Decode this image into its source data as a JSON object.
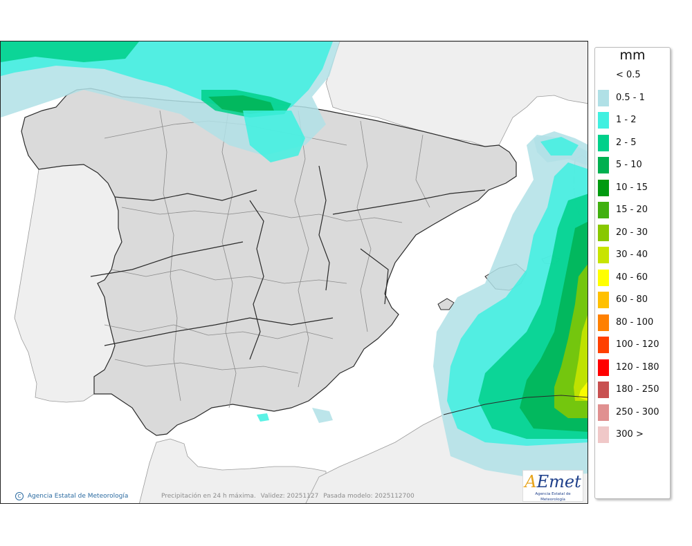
{
  "map": {
    "caption_parts": [
      "Precipitación en 24 h máxima.",
      "Validez: 20251127",
      "Pasada modelo: 2025112700"
    ],
    "credit": "Agencia Estatal de Meteorología",
    "copyright_symbol": "C",
    "logo_text": "AEmet",
    "logo_subtitle": "Agencia Estatal de Meteorología",
    "colors": {
      "sea": "#ffffff",
      "foreign_land": "#efefef",
      "spain_land": "#dadada",
      "border": "#2a2a2a",
      "province": "#8a8a8a"
    },
    "precip_areas": [
      {
        "region": "Cantabrian Sea / Bay of Biscay",
        "max_class": "5 - 10"
      },
      {
        "region": "Basque Country coast",
        "max_class": "2 - 5"
      },
      {
        "region": "Balearic Sea east",
        "max_class": "20 - 30"
      },
      {
        "region": "Algerian coast",
        "max_class": "40 - 60"
      },
      {
        "region": "Gulf of Lion",
        "max_class": "1 - 2"
      }
    ]
  },
  "legend": {
    "unit": "mm",
    "classes": [
      {
        "label": "< 0.5",
        "color": "#ffffff"
      },
      {
        "label": "0.5 - 1",
        "color": "#b0e0e6"
      },
      {
        "label": "1 - 2",
        "color": "#40f0e0"
      },
      {
        "label": "2 - 5",
        "color": "#00d08a"
      },
      {
        "label": "5 - 10",
        "color": "#00b050"
      },
      {
        "label": "10 - 15",
        "color": "#009a10"
      },
      {
        "label": "15 - 20",
        "color": "#40b010"
      },
      {
        "label": "20 - 30",
        "color": "#88c800"
      },
      {
        "label": "30 - 40",
        "color": "#c8e400"
      },
      {
        "label": "40 - 60",
        "color": "#ffff00"
      },
      {
        "label": "60 - 80",
        "color": "#ffc000"
      },
      {
        "label": "80 - 100",
        "color": "#ff8000"
      },
      {
        "label": "100 - 120",
        "color": "#ff4000"
      },
      {
        "label": "120 - 180",
        "color": "#ff0000"
      },
      {
        "label": "180 - 250",
        "color": "#c85050"
      },
      {
        "label": "250 - 300",
        "color": "#e09090"
      },
      {
        "label": "300 >",
        "color": "#f0c8c8"
      }
    ]
  }
}
